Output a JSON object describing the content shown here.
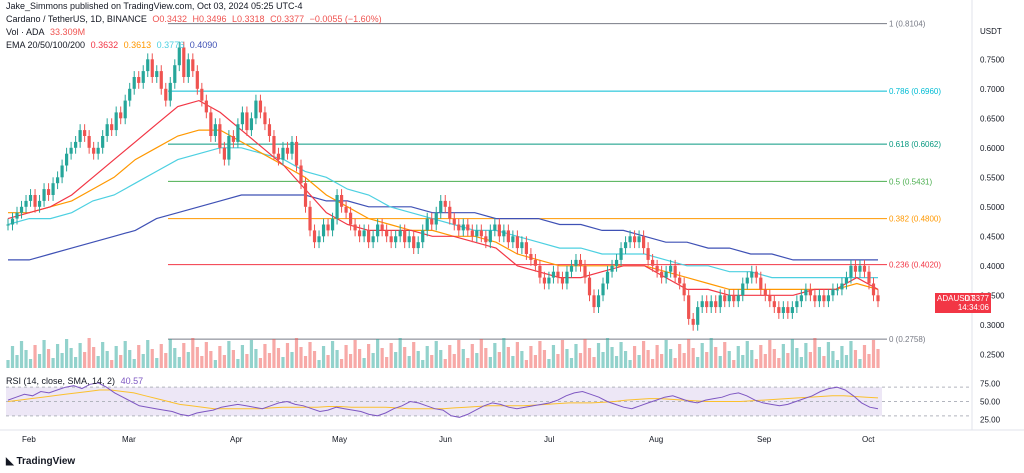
{
  "header": {
    "publisher": "Jake_Simmons published on TradingView.com, Oct 03, 2024 05:25 UTC-4",
    "symbol": "Cardano / TetherUS, 1D, BINANCE",
    "ohlc": {
      "o": "O0.3432",
      "h": "H0.3496",
      "l": "L0.3318",
      "c": "C0.3377",
      "chg": "−0.0055 (−1.60%)"
    },
    "vol_label": "Vol · ADA",
    "vol_value": "33.309M",
    "ema_label": "EMA 20/50/100/200",
    "ema_values": [
      "0.3632",
      "0.3613",
      "0.3776",
      "0.4090"
    ],
    "rsi_label": "RSI (14, close, SMA, 14, 2)",
    "rsi_value": "40.57",
    "currency": "USDT",
    "price_tag": "ADAUSDT",
    "price_value": "0.3377",
    "countdown": "14:34:06",
    "footer": "TradingView"
  },
  "colors": {
    "up": "#26a69a",
    "down": "#ef5350",
    "ema20": "#f23645",
    "ema50": "#ff9800",
    "ema100": "#4dd0e1",
    "ema200": "#3f51b5",
    "rsi": "#7e57c2",
    "rsima": "#fbc02d"
  },
  "chart_data": {
    "type": "candlestick",
    "price_axis_ticks": [
      "0.7500",
      "0.7000",
      "0.6500",
      "0.6000",
      "0.5500",
      "0.5000",
      "0.4500",
      "0.4000",
      "0.3500",
      "0.3000",
      "0.2500"
    ],
    "price_axis_values": [
      0.75,
      0.7,
      0.65,
      0.6,
      0.55,
      0.5,
      0.45,
      0.4,
      0.35,
      0.3,
      0.25
    ],
    "ylim": [
      0.22,
      0.82
    ],
    "x_labels": [
      "Feb",
      "Mar",
      "Apr",
      "May",
      "Jun",
      "Jul",
      "Aug",
      "Sep",
      "Oct"
    ],
    "rsi_ticks": [
      "75.00",
      "50.00",
      "25.00"
    ],
    "rsi_tick_values": [
      75,
      50,
      25
    ],
    "fib_levels": [
      {
        "label": "1 (0.8104)",
        "value": 0.8104,
        "color": "#787b86"
      },
      {
        "label": "0.786 (0.6960)",
        "value": 0.696,
        "color": "#00bcd4"
      },
      {
        "label": "0.618 (0.6062)",
        "value": 0.6062,
        "color": "#089981"
      },
      {
        "label": "0.5 (0.5431)",
        "value": 0.5431,
        "color": "#4caf50"
      },
      {
        "label": "0.382 (0.4800)",
        "value": 0.48,
        "color": "#ff9800"
      },
      {
        "label": "0.236 (0.4020)",
        "value": 0.402,
        "color": "#f23645"
      },
      {
        "label": "0 (0.2758)",
        "value": 0.2758,
        "color": "#787b86"
      }
    ],
    "closes": [
      0.47,
      0.48,
      0.49,
      0.5,
      0.51,
      0.52,
      0.5,
      0.51,
      0.53,
      0.52,
      0.54,
      0.55,
      0.57,
      0.59,
      0.6,
      0.61,
      0.63,
      0.62,
      0.6,
      0.59,
      0.6,
      0.62,
      0.64,
      0.63,
      0.66,
      0.65,
      0.68,
      0.7,
      0.72,
      0.71,
      0.73,
      0.75,
      0.72,
      0.73,
      0.7,
      0.68,
      0.71,
      0.74,
      0.77,
      0.72,
      0.75,
      0.73,
      0.7,
      0.68,
      0.66,
      0.62,
      0.64,
      0.6,
      0.58,
      0.62,
      0.61,
      0.64,
      0.66,
      0.63,
      0.65,
      0.68,
      0.66,
      0.64,
      0.62,
      0.59,
      0.58,
      0.6,
      0.59,
      0.61,
      0.57,
      0.54,
      0.5,
      0.46,
      0.44,
      0.45,
      0.47,
      0.46,
      0.48,
      0.52,
      0.5,
      0.49,
      0.47,
      0.46,
      0.45,
      0.46,
      0.44,
      0.45,
      0.47,
      0.46,
      0.45,
      0.44,
      0.45,
      0.46,
      0.44,
      0.45,
      0.43,
      0.44,
      0.46,
      0.48,
      0.47,
      0.49,
      0.51,
      0.5,
      0.48,
      0.47,
      0.46,
      0.47,
      0.46,
      0.45,
      0.46,
      0.45,
      0.44,
      0.46,
      0.47,
      0.45,
      0.46,
      0.44,
      0.45,
      0.43,
      0.44,
      0.42,
      0.41,
      0.4,
      0.38,
      0.37,
      0.38,
      0.39,
      0.38,
      0.37,
      0.39,
      0.4,
      0.41,
      0.4,
      0.38,
      0.35,
      0.33,
      0.35,
      0.37,
      0.39,
      0.4,
      0.41,
      0.43,
      0.44,
      0.45,
      0.44,
      0.45,
      0.43,
      0.41,
      0.4,
      0.39,
      0.38,
      0.39,
      0.4,
      0.38,
      0.37,
      0.35,
      0.31,
      0.3,
      0.33,
      0.34,
      0.33,
      0.34,
      0.33,
      0.35,
      0.34,
      0.35,
      0.34,
      0.35,
      0.37,
      0.38,
      0.39,
      0.38,
      0.36,
      0.35,
      0.34,
      0.33,
      0.32,
      0.33,
      0.32,
      0.33,
      0.34,
      0.35,
      0.36,
      0.35,
      0.34,
      0.35,
      0.34,
      0.35,
      0.36,
      0.36,
      0.37,
      0.38,
      0.4,
      0.39,
      0.4,
      0.39,
      0.37,
      0.35,
      0.34
    ],
    "ema20": [
      0.48,
      0.49,
      0.5,
      0.52,
      0.55,
      0.58,
      0.61,
      0.64,
      0.67,
      0.68,
      0.66,
      0.63,
      0.6,
      0.57,
      0.53,
      0.49,
      0.47,
      0.46,
      0.46,
      0.46,
      0.45,
      0.45,
      0.44,
      0.43,
      0.4,
      0.39,
      0.38,
      0.38,
      0.39,
      0.4,
      0.4,
      0.38,
      0.36,
      0.36,
      0.35,
      0.35,
      0.35,
      0.35,
      0.36,
      0.36,
      0.38,
      0.36
    ],
    "ema50": [
      0.49,
      0.49,
      0.5,
      0.51,
      0.53,
      0.55,
      0.58,
      0.6,
      0.62,
      0.63,
      0.63,
      0.61,
      0.59,
      0.57,
      0.55,
      0.52,
      0.5,
      0.48,
      0.47,
      0.46,
      0.46,
      0.45,
      0.45,
      0.44,
      0.42,
      0.41,
      0.4,
      0.4,
      0.4,
      0.4,
      0.4,
      0.39,
      0.38,
      0.37,
      0.36,
      0.36,
      0.36,
      0.36,
      0.36,
      0.36,
      0.37,
      0.36
    ],
    "ema100": [
      0.47,
      0.48,
      0.48,
      0.49,
      0.51,
      0.52,
      0.54,
      0.56,
      0.58,
      0.59,
      0.6,
      0.6,
      0.59,
      0.58,
      0.56,
      0.55,
      0.53,
      0.52,
      0.5,
      0.49,
      0.48,
      0.47,
      0.46,
      0.46,
      0.45,
      0.44,
      0.43,
      0.43,
      0.42,
      0.42,
      0.42,
      0.41,
      0.4,
      0.4,
      0.39,
      0.39,
      0.38,
      0.38,
      0.38,
      0.38,
      0.38,
      0.38
    ],
    "ema200": [
      0.41,
      0.41,
      0.42,
      0.43,
      0.44,
      0.45,
      0.46,
      0.48,
      0.49,
      0.5,
      0.51,
      0.52,
      0.52,
      0.52,
      0.52,
      0.51,
      0.51,
      0.5,
      0.5,
      0.5,
      0.49,
      0.49,
      0.49,
      0.48,
      0.48,
      0.48,
      0.47,
      0.47,
      0.46,
      0.46,
      0.45,
      0.44,
      0.44,
      0.43,
      0.43,
      0.42,
      0.42,
      0.41,
      0.41,
      0.41,
      0.41,
      0.41
    ],
    "rsi": [
      52,
      56,
      60,
      58,
      64,
      62,
      66,
      70,
      72,
      68,
      74,
      76,
      70,
      62,
      56,
      50,
      44,
      42,
      40,
      38,
      36,
      32,
      30,
      34,
      36,
      38,
      42,
      44,
      46,
      44,
      42,
      40,
      44,
      48,
      50,
      46,
      44,
      40,
      36,
      38,
      42,
      40,
      38,
      36,
      32,
      30,
      34,
      40,
      44,
      50,
      48,
      44,
      40,
      38,
      30,
      28,
      32,
      38,
      44,
      48,
      46,
      42,
      40,
      42,
      44,
      46,
      48,
      52,
      58,
      62,
      64,
      60,
      56,
      50,
      46,
      42,
      40,
      44,
      48,
      52,
      56,
      58,
      54,
      50,
      48,
      52,
      54,
      56,
      60,
      62,
      58,
      52,
      48,
      46,
      44,
      46,
      50,
      54,
      58,
      64,
      68,
      70,
      66,
      58,
      48,
      42,
      40
    ],
    "rsi_ma": [
      50,
      52,
      54,
      56,
      58,
      60,
      62,
      64,
      66,
      66,
      64,
      62,
      58,
      54,
      50,
      46,
      44,
      42,
      40,
      40,
      40,
      40,
      40,
      41,
      42,
      42,
      42,
      42,
      43,
      43,
      42,
      42,
      42,
      42,
      41,
      40,
      40,
      40,
      40,
      41,
      42,
      43,
      44,
      44,
      44,
      44,
      45,
      46,
      47,
      48,
      48,
      48,
      49,
      50,
      52,
      53,
      54,
      54,
      53,
      52,
      51,
      50,
      50,
      50,
      50,
      51,
      52,
      53,
      54,
      55,
      56,
      57,
      58,
      58,
      57,
      56,
      55
    ]
  }
}
